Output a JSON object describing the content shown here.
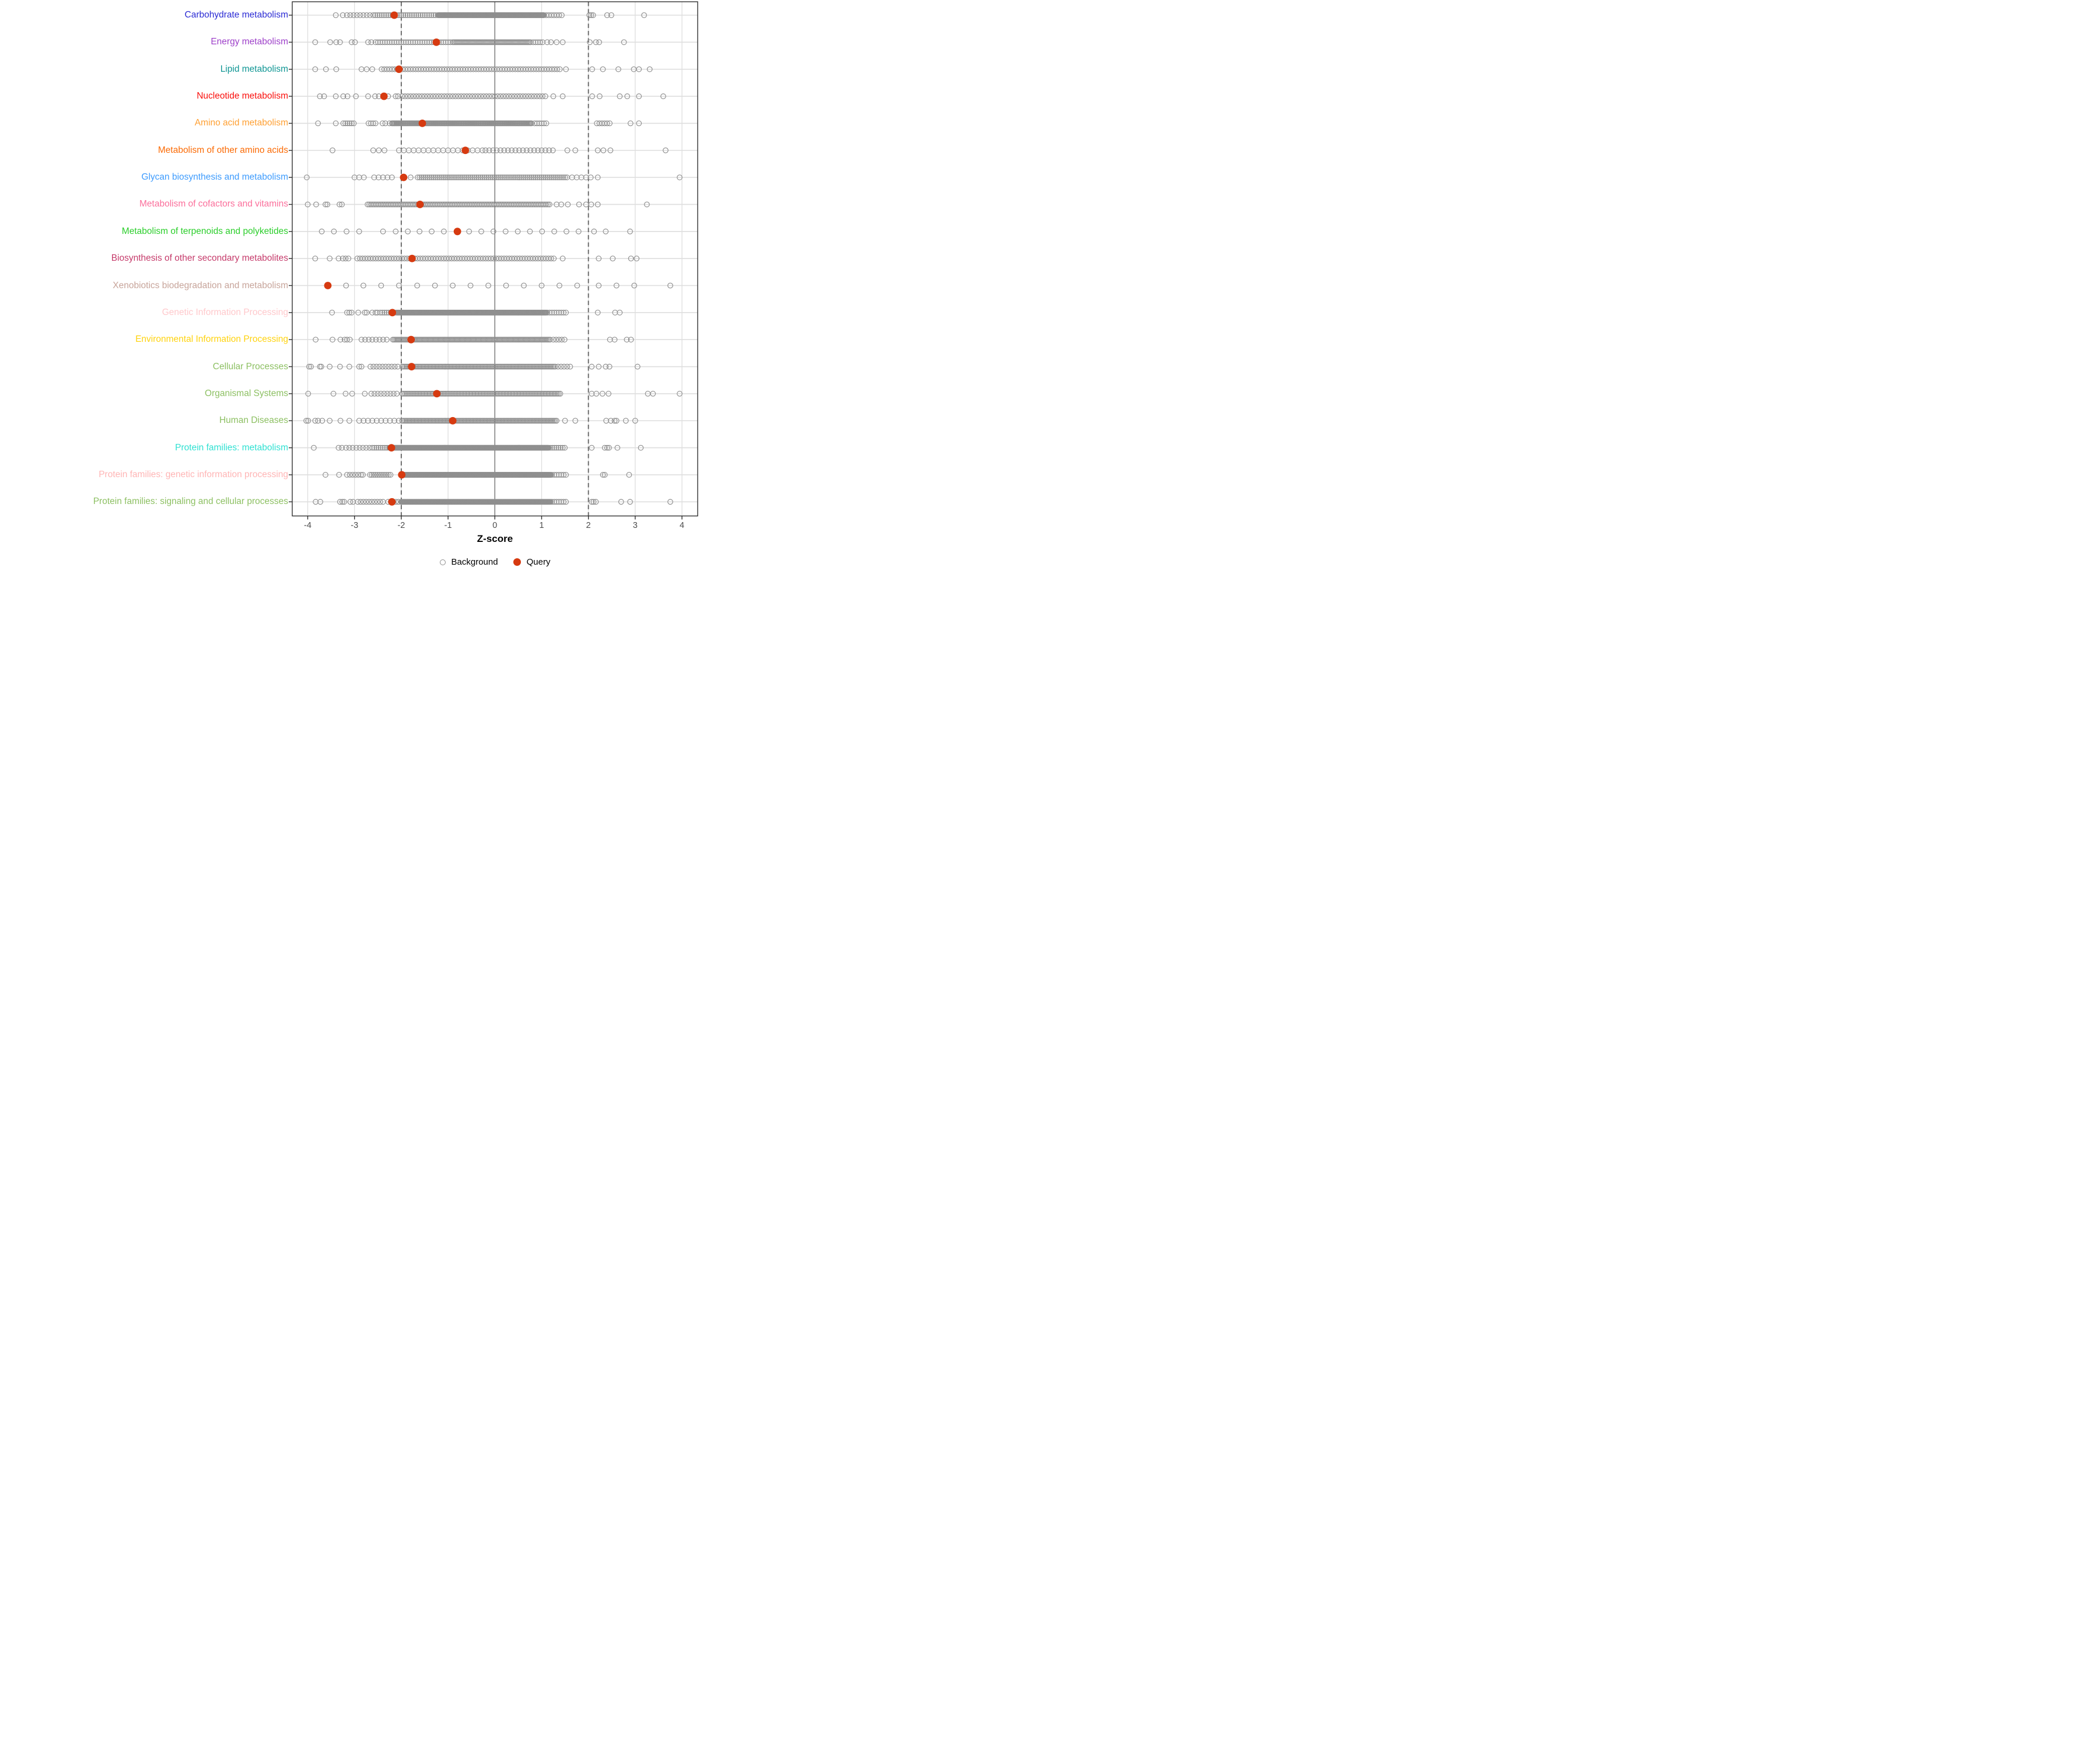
{
  "x_axis": {
    "label": "Z-score",
    "ticks": [
      -4,
      -3,
      -2,
      -1,
      0,
      1,
      2,
      3,
      4
    ],
    "range": [
      -4.33,
      4.33
    ],
    "reference_lines": {
      "solid_at": 0,
      "dashed_at": [
        -2,
        2
      ]
    }
  },
  "legend": {
    "background_label": "Background",
    "query_label": "Query"
  },
  "colors": {
    "background_point_stroke": "#8F8F8F",
    "query_point_fill": "#D63A10",
    "grid_line": "#DEDEDE",
    "zero_line": "#6B6B6B",
    "dashed_line": "#686868",
    "panel_border": "#2F2F2F",
    "tick_text": "#4D4D4D",
    "axis_title_text": "#000000"
  },
  "chart_data": {
    "type": "scatter",
    "title": "",
    "xlabel": "Z-score",
    "ylabel": "",
    "xlim": [
      -4.33,
      4.33
    ],
    "grid": true,
    "legend_position": "bottom",
    "series_legend": [
      "Background",
      "Query"
    ],
    "categories": [
      {
        "label": "Carbohydrate metabolism",
        "color": "#2A2AD4",
        "query": -2.15,
        "bg": {
          "segments": [
            [
              -3.16,
              -2.66,
              0.07
            ],
            [
              -2.6,
              -1.22,
              0.046
            ],
            [
              -1.2,
              1.06,
              0.013
            ],
            [
              1.1,
              1.48,
              0.055
            ]
          ],
          "singles": [
            -3.4,
            -3.25,
            2.02,
            2.06,
            2.1,
            2.4,
            2.49,
            3.19
          ]
        }
      },
      {
        "label": "Energy metabolism",
        "color": "#9D3FC9",
        "query": -1.25,
        "bg": {
          "segments": [
            [
              -2.55,
              -0.92,
              0.05
            ],
            [
              -0.9,
              0.78,
              0.026
            ],
            [
              0.82,
              1.02,
              0.05
            ]
          ],
          "singles": [
            -3.84,
            -3.52,
            -3.39,
            -3.31,
            -3.06,
            -2.99,
            -2.71,
            -2.64,
            1.12,
            1.2,
            1.32,
            1.45,
            2.03,
            2.16,
            2.23,
            2.76
          ]
        }
      },
      {
        "label": "Lipid metabolism",
        "color": "#0F9694",
        "query": -2.05,
        "bg": {
          "segments": [
            [
              -2.42,
              1.42,
              0.056
            ]
          ],
          "singles": [
            -3.84,
            -3.61,
            -3.39,
            -2.85,
            -2.74,
            -2.62,
            1.52,
            2.08,
            2.31,
            2.64,
            2.97,
            3.08,
            3.31
          ]
        }
      },
      {
        "label": "Nucleotide metabolism",
        "color": "#FA0F0C",
        "query": -2.37,
        "bg": {
          "segments": [
            [
              -1.98,
              1.12,
              0.06
            ]
          ],
          "singles": [
            -3.74,
            -3.65,
            -3.4,
            -3.24,
            -3.15,
            -2.97,
            -2.71,
            -2.56,
            -2.48,
            -2.28,
            -2.12,
            -2.07,
            1.25,
            1.45,
            2.08,
            2.24,
            2.67,
            2.83,
            3.08,
            3.6
          ]
        }
      },
      {
        "label": "Amino acid metabolism",
        "color": "#FFA033",
        "query": -1.55,
        "bg": {
          "segments": [
            [
              -3.24,
              -2.98,
              0.045
            ],
            [
              -2.7,
              -2.52,
              0.05
            ],
            [
              -2.2,
              0.8,
              0.019
            ],
            [
              0.85,
              1.1,
              0.05
            ],
            [
              2.18,
              2.46,
              0.055
            ]
          ],
          "singles": [
            -3.78,
            -3.4,
            -2.4,
            -2.34,
            -2.25,
            2.9,
            3.08
          ]
        }
      },
      {
        "label": "Metabolism of other amino acids",
        "color": "#FB6A04",
        "query": -0.63,
        "bg": {
          "segments": [
            [
              -2.6,
              -2.3,
              0.12
            ],
            [
              -2.05,
              -0.25,
              0.105
            ],
            [
              -0.2,
              1.3,
              0.08
            ]
          ],
          "singles": [
            -3.47,
            1.55,
            1.72,
            2.2,
            2.32,
            2.47,
            3.65
          ]
        }
      },
      {
        "label": "Glycan biosynthesis and metabolism",
        "color": "#3D9BFD",
        "query": -1.95,
        "bg": {
          "segments": [
            [
              -3.0,
              -2.8,
              0.1
            ],
            [
              -2.58,
              -2.2,
              0.095
            ],
            [
              -1.65,
              1.55,
              0.042
            ],
            [
              1.65,
              2.05,
              0.1
            ]
          ],
          "singles": [
            -4.02,
            -1.8,
            2.2,
            3.95
          ]
        }
      },
      {
        "label": "Metabolism of cofactors and vitamins",
        "color": "#FB6F9B",
        "query": -1.6,
        "bg": {
          "segments": [
            [
              -2.72,
              1.2,
              0.036
            ]
          ],
          "singles": [
            -4.0,
            -3.82,
            -3.62,
            -3.58,
            -3.32,
            -3.27,
            1.32,
            1.42,
            1.56,
            1.8,
            1.95,
            2.06,
            2.2,
            3.25
          ]
        }
      },
      {
        "label": "Metabolism of terpenoids and polyketides",
        "color": "#2BCE2B",
        "query": -0.8,
        "bg": {
          "segments": [],
          "singles": [
            -3.7,
            -3.44,
            -3.17,
            -2.9,
            -2.39,
            -2.12,
            -1.86,
            -1.61,
            -1.35,
            -1.09,
            -0.55,
            -0.29,
            -0.03,
            0.23,
            0.49,
            0.75,
            1.01,
            1.27,
            1.53,
            1.79,
            2.12,
            2.37,
            2.89
          ]
        }
      },
      {
        "label": "Biosynthesis of other secondary metabolites",
        "color": "#C53A6A",
        "query": -1.77,
        "bg": {
          "segments": [
            [
              -2.94,
              1.3,
              0.056
            ]
          ],
          "singles": [
            -3.84,
            -3.53,
            -3.34,
            -3.25,
            -3.19,
            -3.13,
            1.45,
            2.22,
            2.52,
            2.91,
            3.03
          ]
        }
      },
      {
        "label": "Xenobiotics biodegradation and metabolism",
        "color": "#C7A49A",
        "query": -3.57,
        "bg": {
          "segments": [],
          "singles": [
            -3.18,
            -2.81,
            -2.43,
            -2.05,
            -1.66,
            -1.28,
            -0.9,
            -0.52,
            -0.14,
            0.24,
            0.62,
            1.0,
            1.38,
            1.76,
            2.22,
            2.6,
            2.98,
            3.75
          ]
        }
      },
      {
        "label": "Genetic Information Processing",
        "color": "#FFC9CC",
        "query": -2.19,
        "bg": {
          "segments": [
            [
              -2.45,
              -2.12,
              0.045
            ],
            [
              -2.1,
              1.1,
              0.013
            ],
            [
              1.12,
              1.55,
              0.05
            ]
          ],
          "singles": [
            -3.48,
            -3.16,
            -3.11,
            -3.06,
            -2.92,
            -2.78,
            -2.74,
            -2.62,
            -2.55,
            -2.51,
            2.2,
            2.57,
            2.67
          ]
        }
      },
      {
        "label": "Environmental Information Processing",
        "color": "#FFD30F",
        "query": -1.79,
        "bg": {
          "segments": [
            [
              -2.85,
              -2.25,
              0.077
            ],
            [
              -2.18,
              1.2,
              0.028
            ],
            [
              1.25,
              1.5,
              0.06
            ]
          ],
          "singles": [
            -3.83,
            -3.47,
            -3.3,
            -3.21,
            -3.16,
            -3.1,
            2.46,
            2.56,
            2.82,
            2.91
          ]
        }
      },
      {
        "label": "Cellular Processes",
        "color": "#8DC063",
        "query": -1.78,
        "bg": {
          "segments": [
            [
              -2.66,
              -2.03,
              0.065
            ],
            [
              -1.98,
              1.3,
              0.03
            ],
            [
              1.35,
              1.62,
              0.065
            ]
          ],
          "singles": [
            -3.97,
            -3.93,
            -3.74,
            -3.71,
            -3.53,
            -3.31,
            -3.11,
            -2.9,
            -2.85,
            2.07,
            2.22,
            2.37,
            2.45,
            3.05
          ]
        }
      },
      {
        "label": "Organismal Systems",
        "color": "#8DC063",
        "query": -1.24,
        "bg": {
          "segments": [
            [
              -2.64,
              -2.03,
              0.068
            ],
            [
              -1.98,
              1.4,
              0.031
            ]
          ],
          "singles": [
            -3.99,
            -3.45,
            -3.19,
            -3.05,
            -2.78,
            2.07,
            2.17,
            2.3,
            2.43,
            3.27,
            3.38,
            3.95
          ]
        }
      },
      {
        "label": "Human Diseases",
        "color": "#8DC063",
        "query": -0.9,
        "bg": {
          "segments": [
            [
              -2.9,
              -2.05,
              0.094
            ],
            [
              -1.98,
              1.32,
              0.03
            ]
          ],
          "singles": [
            -4.03,
            -3.99,
            -3.84,
            -3.78,
            -3.69,
            -3.53,
            -3.3,
            -3.11,
            1.5,
            1.72,
            2.38,
            2.48,
            2.56,
            2.6,
            2.8,
            3.0
          ]
        }
      },
      {
        "label": "Protein families: metabolism",
        "color": "#2FE1D2",
        "query": -2.21,
        "bg": {
          "segments": [
            [
              -2.96,
              -2.68,
              0.07
            ],
            [
              -2.62,
              -2.3,
              0.045
            ],
            [
              -2.26,
              1.15,
              0.012
            ],
            [
              1.18,
              1.5,
              0.045
            ]
          ],
          "singles": [
            -3.87,
            -3.34,
            -3.27,
            -3.18,
            -3.11,
            -3.04,
            2.07,
            2.35,
            2.4,
            2.44,
            2.62,
            3.12
          ]
        }
      },
      {
        "label": "Protein families: genetic information processing",
        "color": "#FFB5B5",
        "query": -1.99,
        "bg": {
          "segments": [
            [
              -3.16,
              -2.92,
              0.06
            ],
            [
              -2.67,
              -2.22,
              0.04
            ],
            [
              -1.96,
              1.2,
              0.011
            ],
            [
              1.22,
              1.55,
              0.05
            ]
          ],
          "singles": [
            -3.62,
            -3.33,
            -2.86,
            -2.82,
            2.31,
            2.35,
            2.87
          ]
        }
      },
      {
        "label": "Protein families: signaling and cellular processes",
        "color": "#8DC063",
        "query": -2.2,
        "bg": {
          "segments": [
            [
              -2.93,
              -2.34,
              0.06
            ],
            [
              -2.28,
              -2.05,
              0.055
            ],
            [
              -2.0,
              1.2,
              0.011
            ],
            [
              1.22,
              1.52,
              0.05
            ]
          ],
          "singles": [
            -3.83,
            -3.73,
            -3.31,
            -3.26,
            -3.22,
            -3.09,
            -3.03,
            2.07,
            2.11,
            2.16,
            2.7,
            2.89,
            3.75
          ]
        }
      }
    ]
  }
}
